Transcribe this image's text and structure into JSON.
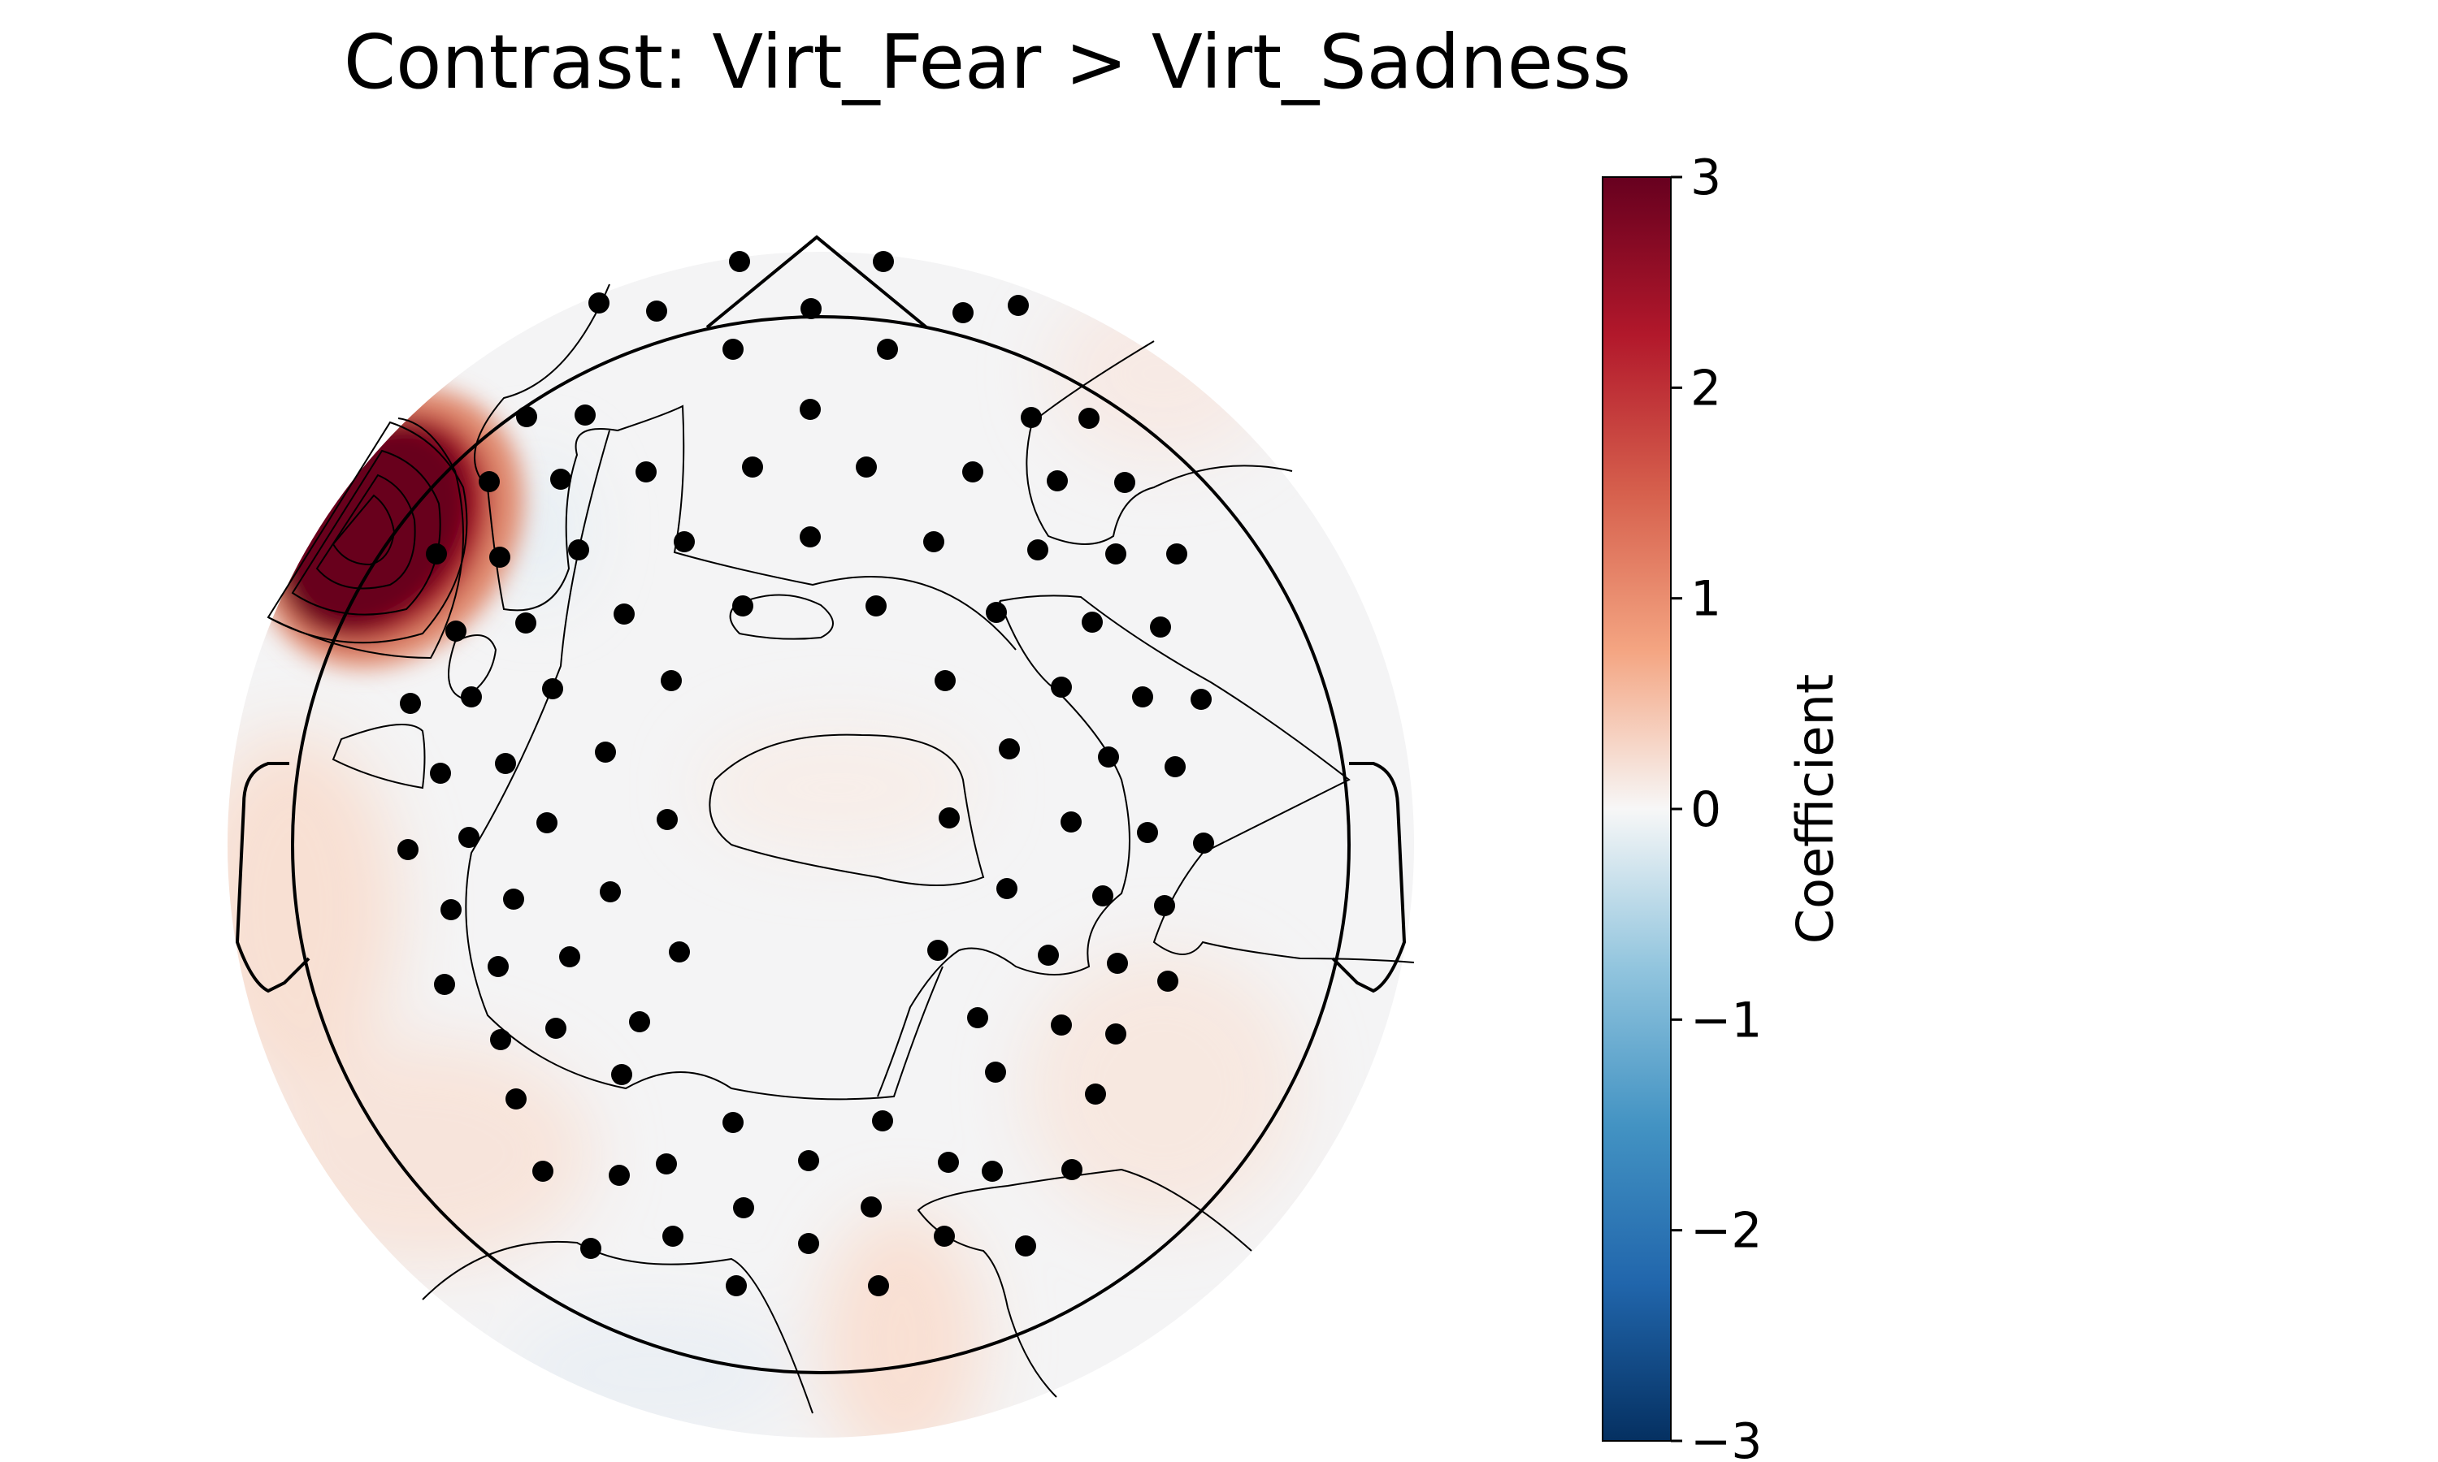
{
  "chart_data": {
    "type": "heatmap",
    "subtype": "eeg-topomap",
    "title": "Contrast: Virt_Fear > Virt_Sadness",
    "colorbar": {
      "label": "Coefficient",
      "colormap": "RdBu_r",
      "vmin": -3,
      "vmax": 3,
      "ticks": [
        3,
        2,
        1,
        0,
        -1,
        -2,
        -3
      ],
      "tick_labels": [
        "3",
        "2",
        "1",
        "0",
        "−1",
        "−2",
        "−3"
      ]
    },
    "blobs": [
      {
        "location": "left-frontal",
        "value": 3.0
      },
      {
        "location": "left-temporal",
        "value": 0.3
      },
      {
        "location": "left-posterior",
        "value": 0.25
      },
      {
        "location": "right-posterior",
        "value": 0.2
      },
      {
        "location": "occipital",
        "value": 0.3
      },
      {
        "location": "frontal-midline",
        "value": -0.1
      },
      {
        "location": "right-frontal",
        "value": 0.15
      }
    ],
    "sensor_count": 127
  },
  "colors": {
    "neutral": "#f7f7f7",
    "max": "#67001f",
    "min": "#053061"
  }
}
